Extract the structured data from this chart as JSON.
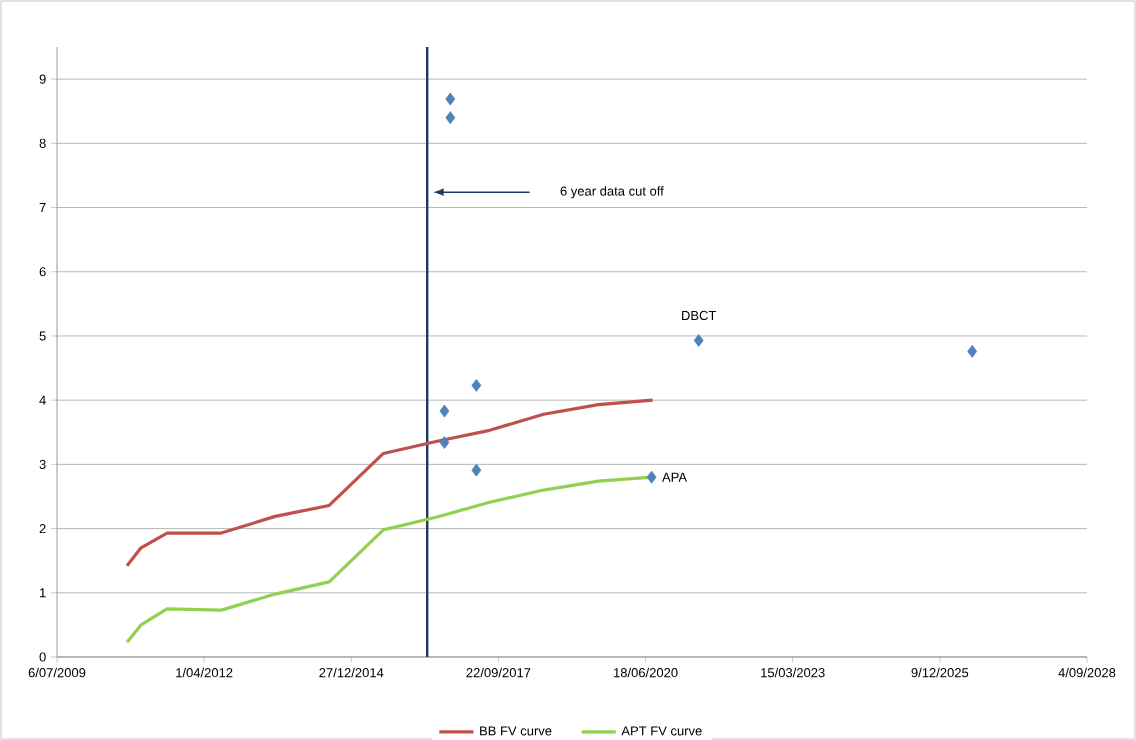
{
  "chart_data": {
    "type": "line",
    "x": [
      "2010-10-25",
      "2011-01-28",
      "2011-07-24",
      "2012-07-26",
      "2013-07-28",
      "2014-07-30",
      "2015-08-02",
      "2016-08-01",
      "2017-07-24",
      "2018-07-26",
      "2019-08-03",
      "2020-08-05"
    ],
    "series": [
      {
        "name": "BB FV curve",
        "color": "#c0504d",
        "values": [
          1.42,
          1.7,
          1.93,
          1.93,
          2.19,
          2.36,
          3.17,
          3.36,
          3.53,
          3.78,
          3.93,
          4.0
        ]
      },
      {
        "name": "APT FV curve",
        "color": "#92d050",
        "values": [
          0.23,
          0.5,
          0.75,
          0.73,
          0.98,
          1.17,
          1.98,
          2.18,
          2.41,
          2.6,
          2.74,
          2.8
        ]
      },
      {
        "type": "scatter",
        "color": "#4f81bd",
        "marker": "diamond",
        "x": [
          "2016-10-30",
          "2016-10-30",
          "2016-09-20",
          "2016-09-20",
          "2017-04-25",
          "2017-04-25",
          "2021-06-14",
          "2020-07-29",
          "2026-07-17"
        ],
        "values": [
          8.69,
          8.4,
          3.83,
          3.34,
          4.23,
          2.91,
          4.93,
          2.8,
          4.76
        ]
      }
    ],
    "xlim": [
      "2009-07-06",
      "2028-09-04"
    ],
    "xticks": [
      {
        "value": "2009-07-06",
        "label": "6/07/2009"
      },
      {
        "value": "2012-04-01",
        "label": "1/04/2012"
      },
      {
        "value": "2014-12-27",
        "label": "27/12/2014"
      },
      {
        "value": "2017-09-22",
        "label": "22/09/2017"
      },
      {
        "value": "2020-06-18",
        "label": "18/06/2020"
      },
      {
        "value": "2023-03-15",
        "label": "15/03/2023"
      },
      {
        "value": "2025-12-09",
        "label": "9/12/2025"
      },
      {
        "value": "2028-09-04",
        "label": "4/09/2028"
      }
    ],
    "ylim": [
      0,
      9.5
    ],
    "yticks": [
      0,
      1,
      2,
      3,
      4,
      5,
      6,
      7,
      8,
      9
    ],
    "grid": "y",
    "legend": "bottom",
    "marker": "none",
    "ref_lines": [
      {
        "axis": "x",
        "value": "2016-05-26",
        "color": "#1f3864"
      }
    ],
    "annotations": [
      "6 year data cut off",
      {
        "text": "DBCT",
        "x": "2021-06-14",
        "y": 4.93
      },
      {
        "text": "APA",
        "x": "2020-07-29",
        "y": 2.8
      }
    ]
  }
}
